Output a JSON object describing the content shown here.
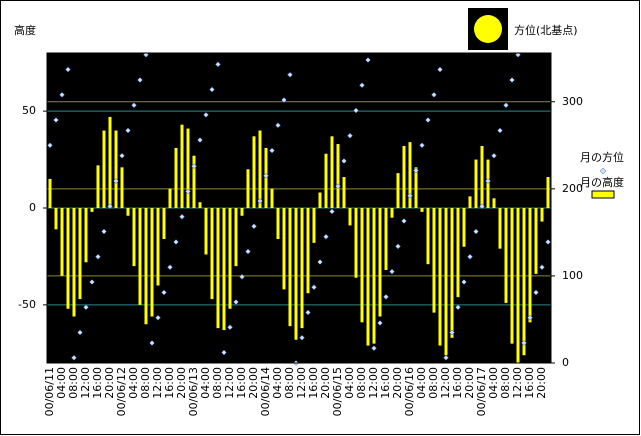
{
  "chart_data": {
    "type": "bar",
    "y_axis_label": "高度",
    "y2_axis_label": "方位(北基点)",
    "categories": [
      "00/06/11",
      null,
      "04:00",
      null,
      "08:00",
      null,
      "12:00",
      null,
      "16:00",
      null,
      "20:00",
      null,
      "00/06/12",
      null,
      "04:00",
      null,
      "08:00",
      null,
      "12:00",
      null,
      "16:00",
      null,
      "20:00",
      null,
      "00/06/13",
      null,
      "04:00",
      null,
      "08:00",
      null,
      "12:00",
      null,
      "16:00",
      null,
      "20:00",
      null,
      "00/06/14",
      null,
      "04:00",
      null,
      "08:00",
      null,
      "12:00",
      null,
      "16:00",
      null,
      "20:00",
      null,
      "00/06/15",
      null,
      "04:00",
      null,
      "08:00",
      null,
      "12:00",
      null,
      "16:00",
      null,
      "20:00",
      null,
      "00/06/16",
      null,
      "04:00",
      null,
      "08:00",
      null,
      "12:00",
      null,
      "16:00",
      null,
      "20:00",
      null,
      "00/06/17",
      null,
      "04:00",
      null,
      "08:00",
      null,
      "12:00",
      null,
      "16:00",
      null,
      "20:00",
      null
    ],
    "series": [
      {
        "name": "月の方位",
        "type": "scatter",
        "axis": "y2",
        "color": "#c8e0ff",
        "values": [
          250,
          279,
          308,
          337,
          6,
          35,
          64,
          93,
          122,
          151,
          180,
          209,
          238,
          267,
          296,
          325,
          354,
          23,
          52,
          81,
          110,
          139,
          168,
          197,
          226,
          256,
          285,
          314,
          343,
          12,
          41,
          70,
          99,
          128,
          157,
          186,
          215,
          244,
          273,
          302,
          331,
          0,
          29,
          58,
          87,
          116,
          145,
          174,
          203,
          232,
          261,
          290,
          319,
          348,
          17,
          46,
          76,
          105,
          134,
          163,
          192,
          221,
          250,
          279,
          308,
          337,
          6,
          35,
          64,
          93,
          122,
          151,
          180,
          209,
          238,
          267,
          296,
          325,
          354,
          23,
          52,
          81,
          110,
          139
        ]
      },
      {
        "name": "月の高度",
        "type": "bar",
        "color": "#ffff00",
        "values": [
          15,
          -11,
          -35,
          -52,
          -56,
          -47,
          -28,
          -2,
          22,
          40,
          47,
          40,
          21,
          -4,
          -30,
          -50,
          -60,
          -56,
          -40,
          -16,
          10,
          31,
          43,
          41,
          27,
          3,
          -24,
          -47,
          -62,
          -63,
          -52,
          -30,
          -4,
          20,
          37,
          40,
          31,
          10,
          -16,
          -42,
          -61,
          -68,
          -62,
          -44,
          -18,
          8,
          28,
          37,
          33,
          16,
          -9,
          -36,
          -59,
          -71,
          -70,
          -56,
          -32,
          -5,
          18,
          32,
          34,
          21,
          -2,
          -29,
          -54,
          -71,
          -76,
          -67,
          -46,
          -20,
          6,
          25,
          32,
          25,
          5,
          -21,
          -49,
          -70,
          -80,
          -76,
          -59,
          -34,
          -7,
          16
        ]
      }
    ],
    "ylim": [
      -80,
      80
    ],
    "yticks": [
      -50,
      0,
      50
    ],
    "y2lim": [
      0,
      356
    ],
    "y2ticks": [
      0,
      100,
      200,
      300
    ],
    "grid": true
  }
}
